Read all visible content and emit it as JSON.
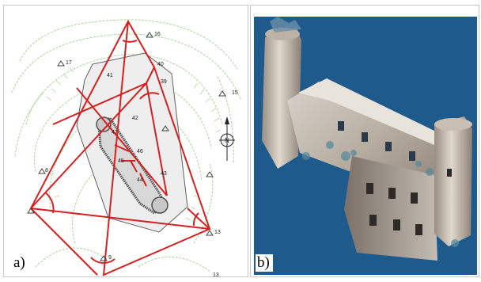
{
  "figure": {
    "panel_a": {
      "label": "a)",
      "survey_points": [
        "15",
        "16",
        "17",
        "8",
        "13",
        "9",
        "13",
        "40",
        "41",
        "39",
        "42",
        "43",
        "44",
        "45",
        "46",
        "47"
      ],
      "north_label": "N"
    },
    "panel_b": {
      "label": "b)"
    }
  },
  "colors": {
    "contour": "#a8d898",
    "survey_lines": "#d42020",
    "outline": "#606060",
    "sky": "#1e5a8c"
  }
}
